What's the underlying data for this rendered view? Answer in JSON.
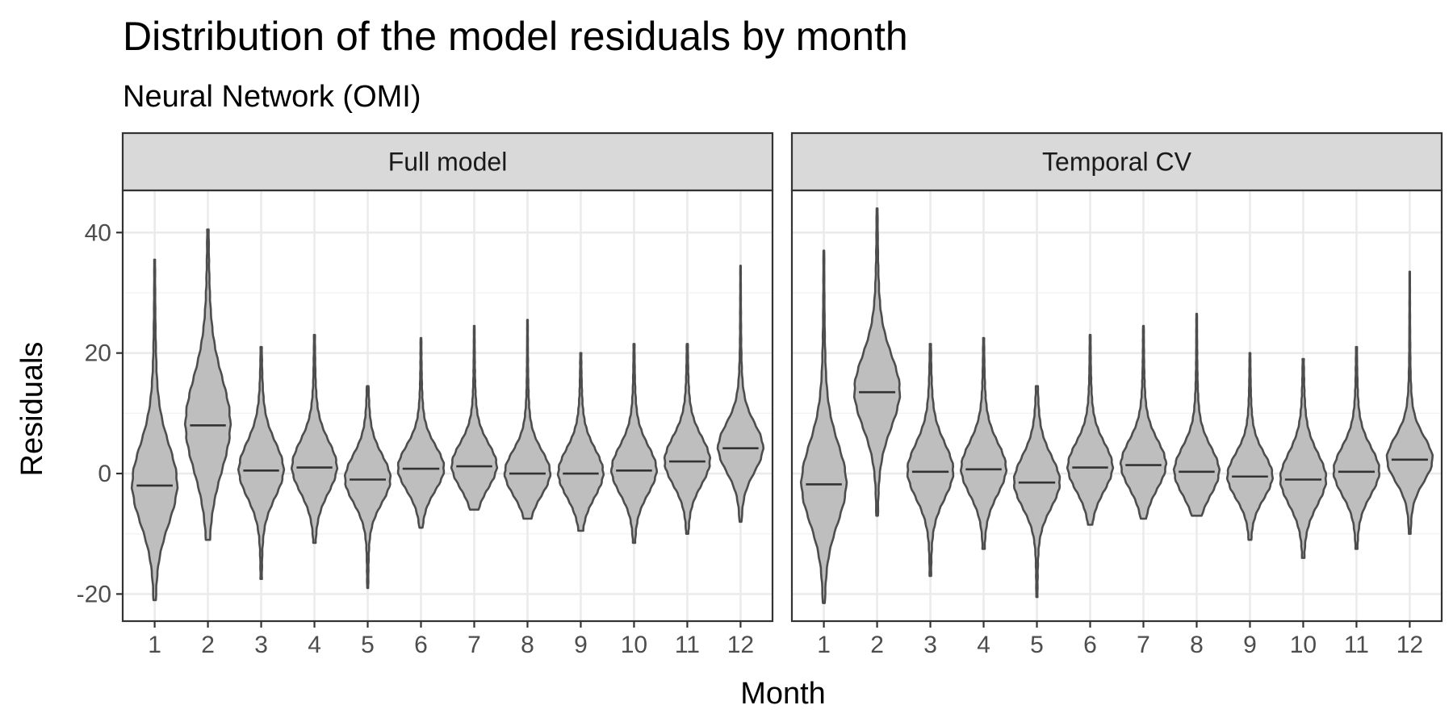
{
  "chart_data": {
    "type": "violin",
    "title": "Distribution of the model residuals by month",
    "subtitle": "Neural Network (OMI)",
    "xlabel": "Month",
    "ylabel": "Residuals",
    "ylim": [
      -24.5,
      47
    ],
    "y_ticks": [
      -20,
      0,
      20,
      40
    ],
    "y_tick_labels": [
      "-20",
      "0",
      "20",
      "40"
    ],
    "categories": [
      "1",
      "2",
      "3",
      "4",
      "5",
      "6",
      "7",
      "8",
      "9",
      "10",
      "11",
      "12"
    ],
    "grid": true,
    "fill_color": "#bebebe",
    "panels": [
      {
        "name": "Full model",
        "violins": [
          {
            "min": -21,
            "max": 35.5,
            "median": -2,
            "q1": -6,
            "q3": 5.5
          },
          {
            "min": -11,
            "max": 40.5,
            "median": 8,
            "q1": 1.5,
            "q3": 15
          },
          {
            "min": -17.5,
            "max": 21,
            "median": 0.5,
            "q1": -3.5,
            "q3": 4.5
          },
          {
            "min": -11.5,
            "max": 23,
            "median": 1,
            "q1": -3,
            "q3": 4.5
          },
          {
            "min": -19,
            "max": 14.5,
            "median": -1,
            "q1": -4.5,
            "q3": 2.5
          },
          {
            "min": -9,
            "max": 22.5,
            "median": 0.8,
            "q1": -2.5,
            "q3": 4
          },
          {
            "min": -6,
            "max": 24.5,
            "median": 1.2,
            "q1": -2,
            "q3": 4.5
          },
          {
            "min": -7.5,
            "max": 25.5,
            "median": 0,
            "q1": -3,
            "q3": 3.5
          },
          {
            "min": -9.5,
            "max": 20,
            "median": 0,
            "q1": -3.5,
            "q3": 3.5
          },
          {
            "min": -11.5,
            "max": 21.5,
            "median": 0.5,
            "q1": -3,
            "q3": 4
          },
          {
            "min": -10,
            "max": 21.5,
            "median": 2,
            "q1": -1.5,
            "q3": 5.5
          },
          {
            "min": -8,
            "max": 34.5,
            "median": 4.2,
            "q1": 0.5,
            "q3": 7.5
          }
        ]
      },
      {
        "name": "Temporal CV",
        "violins": [
          {
            "min": -21.5,
            "max": 37,
            "median": -1.8,
            "q1": -6,
            "q3": 5.5
          },
          {
            "min": -7,
            "max": 44,
            "median": 13.5,
            "q1": 8.5,
            "q3": 19
          },
          {
            "min": -17,
            "max": 21.5,
            "median": 0.3,
            "q1": -3.5,
            "q3": 4.5
          },
          {
            "min": -12.5,
            "max": 22.5,
            "median": 0.7,
            "q1": -3,
            "q3": 4.5
          },
          {
            "min": -20.5,
            "max": 14.5,
            "median": -1.5,
            "q1": -5,
            "q3": 2.5
          },
          {
            "min": -8.5,
            "max": 23,
            "median": 1,
            "q1": -2.5,
            "q3": 4.5
          },
          {
            "min": -7.5,
            "max": 24.5,
            "median": 1.4,
            "q1": -2,
            "q3": 5
          },
          {
            "min": -7,
            "max": 26.5,
            "median": 0.3,
            "q1": -3,
            "q3": 4
          },
          {
            "min": -11,
            "max": 20,
            "median": -0.5,
            "q1": -3.5,
            "q3": 3
          },
          {
            "min": -14,
            "max": 19,
            "median": -1,
            "q1": -4.5,
            "q3": 3
          },
          {
            "min": -12.5,
            "max": 21,
            "median": 0.3,
            "q1": -3,
            "q3": 4
          },
          {
            "min": -10,
            "max": 33.5,
            "median": 2.3,
            "q1": -1,
            "q3": 5.5
          }
        ]
      }
    ]
  }
}
